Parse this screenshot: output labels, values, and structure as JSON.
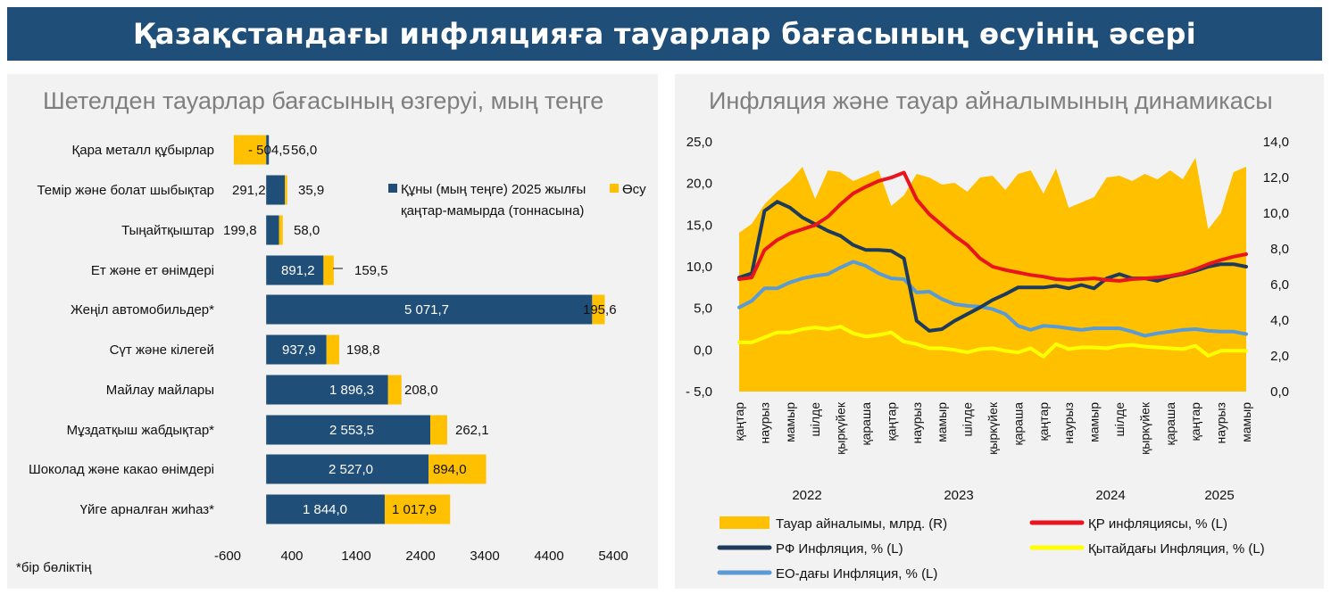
{
  "page": {
    "title": "Қазақстандағы инфляцияға тауарлар бағасының өсуінің әсері",
    "colors": {
      "navy": "#1f4e79",
      "gold": "#ffc000",
      "red": "#e8141e",
      "dark_blue": "#1f3b5c",
      "yellow": "#ffff00",
      "light_blue": "#5b9bd5",
      "panel_bg": "#f2f2f2",
      "title_gray": "#7f7f7f"
    }
  },
  "chart_data": [
    {
      "type": "bar",
      "orientation": "horizontal",
      "stacked": true,
      "title": "Шетелден тауарлар бағасының өзгеруі, мың теңге",
      "categories": [
        "Қара металл құбырлар",
        "Темір және болат шыбықтар",
        "Тыңайтқыштар",
        "Ет және ет өнімдері",
        "Жеңіл автомобильдер*",
        "Сүт және кілегей",
        "Майлау майлары",
        "Мұздатқыш жабдықтар*",
        "Шоколад және какао өнімдері",
        "Үйге арналған жиһаз*"
      ],
      "series": [
        {
          "name": "Құны (мың теңге) 2025 жылғы қаңтар-мамырда (тоннасына)",
          "values": [
            -504.5,
            291.2,
            199.8,
            891.2,
            5071.7,
            937.9,
            1896.3,
            2553.5,
            2527.0,
            1844.0
          ],
          "labels": [
            "- 504,5",
            "291,2",
            "199,8",
            "891,2",
            "5 071,7",
            "937,9",
            "1 896,3",
            "2 553,5",
            "2 527,0",
            "1 844,0"
          ]
        },
        {
          "name": "Өсу",
          "values": [
            56.0,
            35.9,
            58.0,
            159.5,
            195.6,
            198.8,
            208.0,
            262.1,
            894.0,
            1017.9
          ],
          "labels": [
            "56,0",
            "35,9",
            "58,0",
            "159,5",
            "195,6",
            "198,8",
            "208,0",
            "262,1",
            "894,0",
            "1 017,9"
          ]
        }
      ],
      "xlim": [
        -600,
        5400
      ],
      "xticks": [
        "-600",
        "400",
        "1400",
        "2400",
        "3400",
        "4400",
        "5400"
      ],
      "legend": {
        "position": "top-right"
      },
      "footnote": "*бір бөліктің"
    },
    {
      "type": "line",
      "title": "Инфляция және тауар айналымының динамикасы",
      "n_months": 41,
      "y_left": {
        "min": -5,
        "max": 25,
        "ticks": [
          "25,0",
          "20,0",
          "15,0",
          "10,0",
          "5,0",
          "0,0",
          "- 5,0"
        ]
      },
      "y_right": {
        "min": 0,
        "max": 14,
        "ticks": [
          "14,0",
          "12,0",
          "10,0",
          "8,0",
          "6,0",
          "4,0",
          "2,0",
          "0,0"
        ]
      },
      "x_month_labels": [
        "қаңтар",
        "наурыз",
        "мамыр",
        "шілде",
        "қыркүйек",
        "қараша",
        "қаңтар",
        "наурыз",
        "мамыр",
        "шілде",
        "қыркүйек",
        "қараша",
        "қаңтар",
        "наурыз",
        "мамыр",
        "шілде",
        "қыркүйек",
        "қараша",
        "қаңтар",
        "наурыз",
        "мамыр"
      ],
      "x_year_labels": [
        "2022",
        "2023",
        "2024",
        "2025"
      ],
      "series": [
        {
          "name": "Тауар айналымы, млрд. (R)",
          "axis": "right",
          "kind": "area",
          "values": [
            8.9,
            9.4,
            10.5,
            11.2,
            11.8,
            12.6,
            10.8,
            12.4,
            12.3,
            11.8,
            12.1,
            12.4,
            10.4,
            11.0,
            12.2,
            12.0,
            11.6,
            11.7,
            11.2,
            12.0,
            12.1,
            11.3,
            12.2,
            12.4,
            11.1,
            12.5,
            10.3,
            10.6,
            10.9,
            12.0,
            12.1,
            11.8,
            12.2,
            11.9,
            12.4,
            11.9,
            13.1,
            9.1,
            10.0,
            12.3,
            12.6
          ]
        },
        {
          "name": "ҚР инфляциясы, % (L)",
          "axis": "left",
          "kind": "line",
          "values": [
            8.5,
            8.7,
            12.0,
            13.2,
            14.0,
            14.5,
            15.0,
            16.0,
            17.5,
            18.8,
            19.6,
            20.3,
            20.7,
            21.3,
            18.1,
            16.3,
            15.0,
            13.7,
            12.6,
            11.0,
            10.0,
            9.6,
            9.3,
            9.0,
            8.8,
            8.5,
            8.4,
            8.5,
            8.6,
            8.4,
            8.3,
            8.5,
            8.6,
            8.7,
            8.9,
            9.2,
            9.7,
            10.3,
            10.8,
            11.2,
            11.5
          ]
        },
        {
          "name": "РФ Инфляция, % (L)",
          "axis": "left",
          "kind": "line",
          "values": [
            8.7,
            9.2,
            16.7,
            17.8,
            17.1,
            15.9,
            15.1,
            14.3,
            13.7,
            12.6,
            12.0,
            12.0,
            11.9,
            11.0,
            3.5,
            2.3,
            2.5,
            3.5,
            4.3,
            5.1,
            6.0,
            6.7,
            7.5,
            7.5,
            7.5,
            7.7,
            7.4,
            7.8,
            7.4,
            8.6,
            9.1,
            8.6,
            8.6,
            8.3,
            8.8,
            9.1,
            9.5,
            10.0,
            10.3,
            10.3,
            10.0
          ]
        },
        {
          "name": "Қытайдағы Инфляция, % (L)",
          "axis": "left",
          "kind": "line",
          "values": [
            0.9,
            0.9,
            1.5,
            2.1,
            2.1,
            2.5,
            2.7,
            2.5,
            2.8,
            2.0,
            1.6,
            1.8,
            2.1,
            1.0,
            0.7,
            0.2,
            0.2,
            0.0,
            -0.3,
            0.1,
            0.2,
            -0.1,
            -0.3,
            0.2,
            -0.8,
            0.7,
            0.1,
            0.3,
            0.3,
            0.2,
            0.5,
            0.6,
            0.4,
            0.3,
            0.2,
            0.1,
            0.5,
            -0.7,
            -0.1,
            -0.1,
            -0.1
          ]
        },
        {
          "name": "ЕО-дағы Инфляция, % (L)",
          "axis": "left",
          "kind": "line",
          "values": [
            5.1,
            5.9,
            7.4,
            7.4,
            8.1,
            8.6,
            8.9,
            9.1,
            9.9,
            10.6,
            10.1,
            9.2,
            8.6,
            8.5,
            6.9,
            7.0,
            6.1,
            5.5,
            5.3,
            5.2,
            4.9,
            4.3,
            2.9,
            2.4,
            2.9,
            2.8,
            2.6,
            2.4,
            2.6,
            2.6,
            2.6,
            2.2,
            1.7,
            2.0,
            2.2,
            2.4,
            2.5,
            2.3,
            2.2,
            2.2,
            1.9
          ]
        }
      ],
      "legend": {
        "position": "bottom"
      }
    }
  ]
}
